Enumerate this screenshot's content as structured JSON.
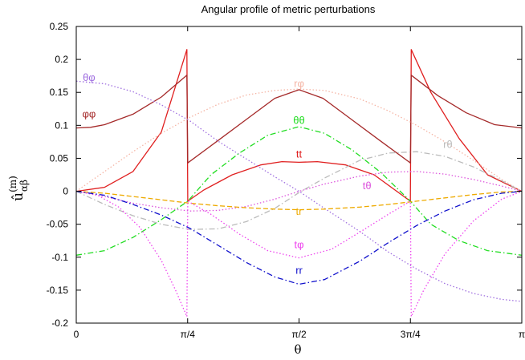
{
  "chart_data": {
    "type": "line",
    "title": "Angular profile of metric perturbations",
    "xlabel": "θ",
    "ylabel": {
      "base": "û",
      "sup": "(m)",
      "sub": "αβ"
    },
    "xlim": [
      0,
      3.14159
    ],
    "ylim": [
      -0.2,
      0.25
    ],
    "x_ticks": [
      {
        "value": 0,
        "label": "0"
      },
      {
        "value": 0.785398,
        "label": "π/4"
      },
      {
        "value": 1.570796,
        "label": "π/2"
      },
      {
        "value": 2.356194,
        "label": "3π/4"
      },
      {
        "value": 3.141593,
        "label": "π"
      }
    ],
    "y_ticks": [
      {
        "value": 0.25,
        "label": "0.25"
      },
      {
        "value": 0.2,
        "label": "0.2"
      },
      {
        "value": 0.15,
        "label": "0.15"
      },
      {
        "value": 0.1,
        "label": "0.1"
      },
      {
        "value": 0.05,
        "label": "0.05"
      },
      {
        "value": 0,
        "label": "0"
      },
      {
        "value": -0.05,
        "label": "-0.05"
      },
      {
        "value": -0.1,
        "label": "-0.1"
      },
      {
        "value": -0.15,
        "label": "-0.15"
      },
      {
        "value": -0.2,
        "label": "-0.2"
      }
    ],
    "grid": false,
    "legend": "inline",
    "series": [
      {
        "name": "tt",
        "color": "#e02020",
        "dash": "solid",
        "x": [
          0,
          0.2,
          0.4,
          0.6,
          0.78,
          0.786,
          0.9,
          1.1,
          1.3,
          1.45,
          1.571,
          1.7,
          1.9,
          2.1,
          2.356,
          2.362,
          2.5,
          2.7,
          2.9,
          3.14159
        ],
        "y": [
          0,
          0.006,
          0.03,
          0.09,
          0.215,
          -0.015,
          0.002,
          0.025,
          0.04,
          0.045,
          0.044,
          0.045,
          0.04,
          0.025,
          -0.015,
          0.215,
          0.15,
          0.08,
          0.025,
          0
        ]
      },
      {
        "name": "φφ",
        "color": "#a52a2a",
        "dash": "solid",
        "x": [
          0,
          0.1,
          0.2,
          0.4,
          0.6,
          0.78,
          0.786,
          1.0,
          1.2,
          1.4,
          1.571,
          1.74,
          1.94,
          2.14,
          2.356,
          2.362,
          2.55,
          2.75,
          2.95,
          3.14159
        ],
        "y": [
          0.096,
          0.097,
          0.101,
          0.117,
          0.143,
          0.176,
          0.043,
          0.077,
          0.109,
          0.141,
          0.154,
          0.141,
          0.109,
          0.077,
          0.043,
          0.176,
          0.145,
          0.119,
          0.101,
          0.096
        ]
      },
      {
        "name": "rφ",
        "color": "#f5b5a5",
        "dash": "dotted",
        "x": [
          0,
          0.2,
          0.4,
          0.6,
          0.8,
          1.0,
          1.2,
          1.4,
          1.571,
          1.75,
          2.0,
          2.2,
          2.4,
          2.6,
          2.8,
          3.0,
          3.14159
        ],
        "y": [
          0,
          0.03,
          0.06,
          0.088,
          0.112,
          0.132,
          0.146,
          0.153,
          0.155,
          0.153,
          0.14,
          0.122,
          0.1,
          0.075,
          0.047,
          0.018,
          0
        ]
      },
      {
        "name": "θφ",
        "color": "#a070e0",
        "dash": "dotted",
        "x": [
          0,
          0.2,
          0.4,
          0.6,
          0.8,
          1.0,
          1.2,
          1.4,
          1.571,
          1.75,
          2.0,
          2.2,
          2.4,
          2.6,
          2.8,
          3.0,
          3.14159
        ],
        "y": [
          0.167,
          0.163,
          0.151,
          0.131,
          0.107,
          0.076,
          0.049,
          0.022,
          0,
          -0.026,
          -0.061,
          -0.092,
          -0.118,
          -0.14,
          -0.155,
          -0.164,
          -0.167
        ]
      },
      {
        "name": "θθ",
        "color": "#22dd22",
        "dash": "dashdot",
        "x": [
          0,
          0.2,
          0.4,
          0.6,
          0.786,
          0.95,
          1.15,
          1.35,
          1.571,
          1.75,
          1.95,
          2.15,
          2.356,
          2.5,
          2.7,
          2.9,
          3.14159
        ],
        "y": [
          -0.097,
          -0.09,
          -0.07,
          -0.043,
          -0.015,
          0.025,
          0.058,
          0.085,
          0.098,
          0.088,
          0.062,
          0.028,
          -0.015,
          -0.05,
          -0.075,
          -0.09,
          -0.097
        ]
      },
      {
        "name": "rθ",
        "color": "#bbbbbb",
        "dash": "dashdot",
        "x": [
          0,
          0.2,
          0.4,
          0.6,
          0.8,
          1.0,
          1.2,
          1.4,
          1.571,
          1.75,
          2.0,
          2.2,
          2.4,
          2.6,
          2.8,
          3.0,
          3.14159
        ],
        "y": [
          0,
          -0.02,
          -0.037,
          -0.05,
          -0.058,
          -0.057,
          -0.046,
          -0.026,
          -0.002,
          0.02,
          0.047,
          0.058,
          0.06,
          0.053,
          0.037,
          0.016,
          0
        ]
      },
      {
        "name": "tθ",
        "color": "#dd55dd",
        "dash": "dotted",
        "x": [
          0,
          0.2,
          0.4,
          0.6,
          0.8,
          1.0,
          1.2,
          1.4,
          1.571,
          1.75,
          2.0,
          2.2,
          2.4,
          2.6,
          2.8,
          3.0,
          3.14159
        ],
        "y": [
          0,
          -0.008,
          -0.018,
          -0.025,
          -0.03,
          -0.029,
          -0.023,
          -0.012,
          0,
          0.011,
          0.023,
          0.029,
          0.03,
          0.026,
          0.018,
          0.008,
          0
        ]
      },
      {
        "name": "tr",
        "color": "#eeaa00",
        "dash": "dashed",
        "x": [
          0,
          0.2,
          0.4,
          0.6,
          0.8,
          1.0,
          1.2,
          1.4,
          1.571,
          1.75,
          2.0,
          2.2,
          2.4,
          2.6,
          2.8,
          3.0,
          3.14159
        ],
        "y": [
          0,
          -0.003,
          -0.008,
          -0.013,
          -0.018,
          -0.022,
          -0.025,
          -0.027,
          -0.028,
          -0.027,
          -0.024,
          -0.02,
          -0.015,
          -0.01,
          -0.005,
          -0.001,
          0
        ]
      },
      {
        "name": "tφ",
        "color": "#ee44ee",
        "dash": "dotted",
        "x": [
          0,
          0.15,
          0.3,
          0.45,
          0.6,
          0.7,
          0.78,
          0.786,
          0.95,
          1.15,
          1.35,
          1.571,
          1.8,
          2.0,
          2.2,
          2.356,
          2.362,
          2.45,
          2.6,
          2.8,
          3.0,
          3.14159
        ],
        "y": [
          0,
          -0.006,
          -0.024,
          -0.055,
          -0.105,
          -0.15,
          -0.19,
          -0.015,
          -0.035,
          -0.065,
          -0.09,
          -0.101,
          -0.088,
          -0.062,
          -0.035,
          -0.015,
          -0.19,
          -0.15,
          -0.095,
          -0.045,
          -0.012,
          0
        ]
      },
      {
        "name": "rr",
        "color": "#1010cc",
        "dash": "dashdot",
        "x": [
          0,
          0.2,
          0.4,
          0.6,
          0.8,
          1.0,
          1.2,
          1.4,
          1.571,
          1.75,
          2.0,
          2.2,
          2.4,
          2.6,
          2.8,
          3.0,
          3.14159
        ],
        "y": [
          0,
          -0.006,
          -0.02,
          -0.036,
          -0.056,
          -0.082,
          -0.108,
          -0.13,
          -0.141,
          -0.134,
          -0.106,
          -0.078,
          -0.052,
          -0.03,
          -0.013,
          -0.003,
          0
        ]
      }
    ],
    "labels": [
      {
        "text": "θφ",
        "x": 0.09,
        "y": 0.167,
        "color": "#a070e0"
      },
      {
        "text": "φφ",
        "x": 0.09,
        "y": 0.112,
        "color": "#a52a2a"
      },
      {
        "text": "rφ",
        "x": 1.571,
        "y": 0.158,
        "color": "#f5b5a5"
      },
      {
        "text": "θθ",
        "x": 1.571,
        "y": 0.102,
        "color": "#22dd22"
      },
      {
        "text": "tt",
        "x": 1.571,
        "y": 0.051,
        "color": "#e02020"
      },
      {
        "text": "rθ",
        "x": 2.62,
        "y": 0.066,
        "color": "#bbbbbb"
      },
      {
        "text": "tθ",
        "x": 2.05,
        "y": 0.003,
        "color": "#dd55dd"
      },
      {
        "text": "tr",
        "x": 1.571,
        "y": -0.036,
        "color": "#eeaa00"
      },
      {
        "text": "tφ",
        "x": 1.571,
        "y": -0.086,
        "color": "#ee44ee"
      },
      {
        "text": "rr",
        "x": 1.571,
        "y": -0.125,
        "color": "#1010cc"
      }
    ]
  }
}
